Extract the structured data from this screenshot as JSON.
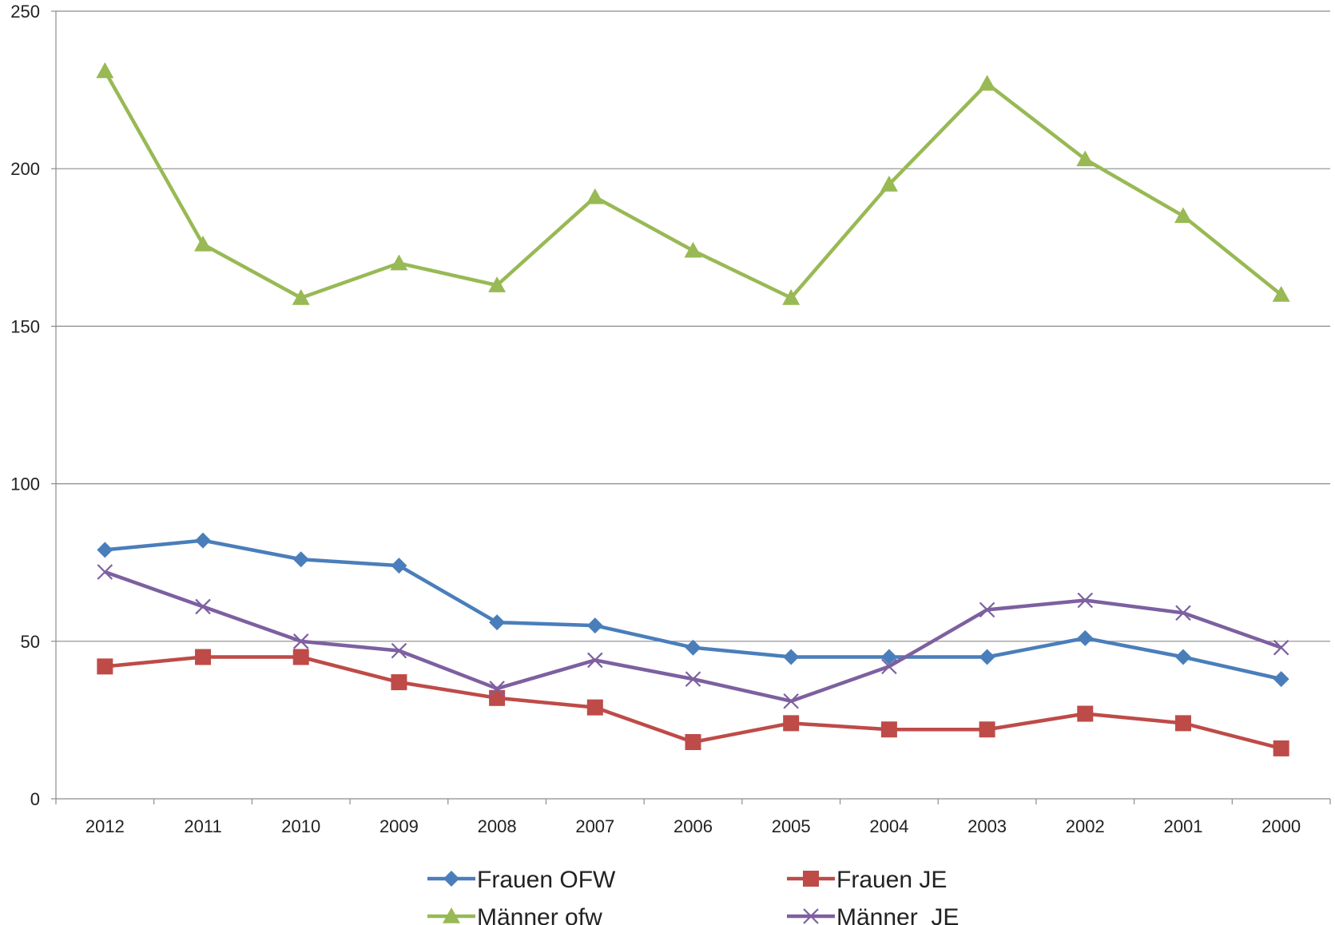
{
  "chart_data": {
    "type": "line",
    "title": "",
    "xlabel": "",
    "ylabel": "",
    "categories": [
      "2012",
      "2011",
      "2010",
      "2009",
      "2008",
      "2007",
      "2006",
      "2005",
      "2004",
      "2003",
      "2002",
      "2001",
      "2000"
    ],
    "ylim": [
      0,
      250
    ],
    "yticks": [
      0,
      50,
      100,
      150,
      200,
      250
    ],
    "grid": "horizontal",
    "legend_position": "bottom",
    "series": [
      {
        "name": "Frauen OFW",
        "color": "#4a7ebb",
        "marker": "diamond",
        "values": [
          79,
          82,
          76,
          74,
          56,
          55,
          48,
          45,
          45,
          45,
          51,
          45,
          38
        ]
      },
      {
        "name": "Frauen JE",
        "color": "#be4b48",
        "marker": "square",
        "values": [
          42,
          45,
          45,
          37,
          32,
          29,
          18,
          24,
          22,
          22,
          27,
          24,
          16
        ]
      },
      {
        "name": "Männer ofw",
        "color": "#98b954",
        "marker": "triangle",
        "values": [
          231,
          176,
          159,
          170,
          163,
          191,
          174,
          159,
          195,
          227,
          203,
          185,
          160
        ]
      },
      {
        "name": "Männer  JE",
        "color": "#7d60a0",
        "marker": "x",
        "values": [
          72,
          61,
          50,
          47,
          35,
          44,
          38,
          31,
          42,
          60,
          63,
          59,
          48
        ]
      }
    ]
  }
}
